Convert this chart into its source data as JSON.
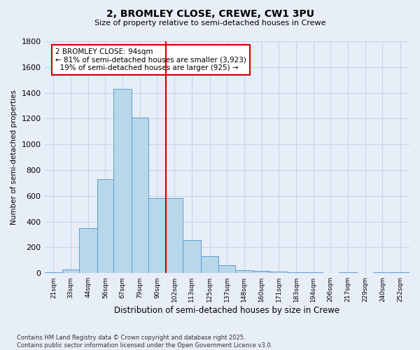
{
  "title": "2, BROMLEY CLOSE, CREWE, CW1 3PU",
  "subtitle": "Size of property relative to semi-detached houses in Crewe",
  "xlabel": "Distribution of semi-detached houses by size in Crewe",
  "ylabel": "Number of semi-detached properties",
  "footer_line1": "Contains HM Land Registry data © Crown copyright and database right 2025.",
  "footer_line2": "Contains public sector information licensed under the Open Government Licence v3.0.",
  "property_label": "2 BROMLEY CLOSE: 94sqm",
  "pct_smaller": 81,
  "pct_larger": 19,
  "count_smaller": 3923,
  "count_larger": 925,
  "bar_labels": [
    "21sqm",
    "33sqm",
    "44sqm",
    "56sqm",
    "67sqm",
    "79sqm",
    "90sqm",
    "102sqm",
    "113sqm",
    "125sqm",
    "137sqm",
    "148sqm",
    "160sqm",
    "171sqm",
    "183sqm",
    "194sqm",
    "206sqm",
    "217sqm",
    "229sqm",
    "240sqm",
    "252sqm"
  ],
  "bar_values": [
    8,
    28,
    350,
    730,
    1430,
    1210,
    580,
    580,
    255,
    130,
    60,
    25,
    15,
    10,
    5,
    8,
    3,
    5,
    2,
    5,
    8
  ],
  "bin_edges": [
    15,
    27,
    38,
    50,
    61,
    73,
    84,
    96,
    107,
    119,
    131,
    142,
    154,
    165,
    177,
    188,
    200,
    211,
    223,
    234,
    246,
    258
  ],
  "bar_color": "#b8d8ea",
  "bar_edgecolor": "#5b9bd5",
  "vline_color": "#cc0000",
  "vline_x": 96,
  "annotation_box_color": "#cc0000",
  "background_color": "#e8eef8",
  "grid_color": "#c8d4e8",
  "ylim": [
    0,
    1800
  ],
  "yticks": [
    0,
    200,
    400,
    600,
    800,
    1000,
    1200,
    1400,
    1600,
    1800
  ]
}
